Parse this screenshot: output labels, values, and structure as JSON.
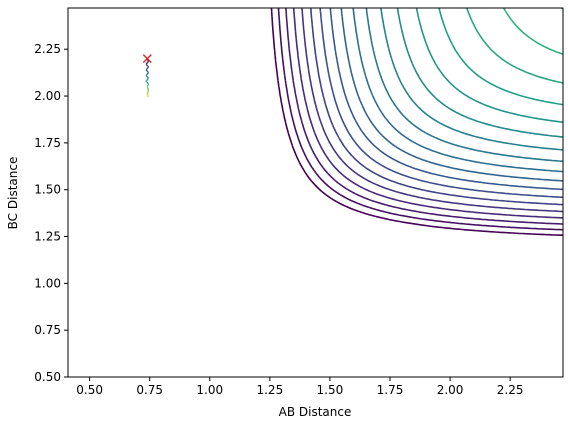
{
  "chart_data": {
    "type": "contour",
    "title": "",
    "xlabel": "AB Distance",
    "ylabel": "BC Distance",
    "xlim": [
      0.41,
      2.47
    ],
    "ylim": [
      0.5,
      2.47
    ],
    "xticks": [
      0.5,
      0.75,
      1.0,
      1.25,
      1.5,
      1.75,
      2.0,
      2.25
    ],
    "xtick_labels": [
      "0.50",
      "0.75",
      "1.00",
      "1.25",
      "1.50",
      "1.75",
      "2.00",
      "2.25"
    ],
    "yticks": [
      0.5,
      0.75,
      1.0,
      1.25,
      1.5,
      1.75,
      2.0,
      2.25
    ],
    "ytick_labels": [
      "0.50",
      "0.75",
      "1.00",
      "1.25",
      "1.50",
      "1.75",
      "2.00",
      "2.25"
    ],
    "colormap": "viridis",
    "grid": false,
    "trajectory": {
      "color": "#8b0a57",
      "points": [
        [
          0.74,
          2.2
        ],
        [
          0.745,
          2.185
        ],
        [
          0.735,
          2.17
        ],
        [
          0.745,
          2.155
        ],
        [
          0.735,
          2.14
        ],
        [
          0.745,
          2.125
        ],
        [
          0.735,
          2.11
        ],
        [
          0.745,
          2.095
        ],
        [
          0.735,
          2.08
        ],
        [
          0.745,
          2.065
        ],
        [
          0.74,
          2.05
        ],
        [
          0.745,
          2.03
        ],
        [
          0.74,
          2.01
        ],
        [
          0.745,
          1.995
        ]
      ]
    },
    "start_marker": {
      "x": 0.74,
      "y": 2.2,
      "symbol": "x",
      "color": "#d62728"
    }
  }
}
